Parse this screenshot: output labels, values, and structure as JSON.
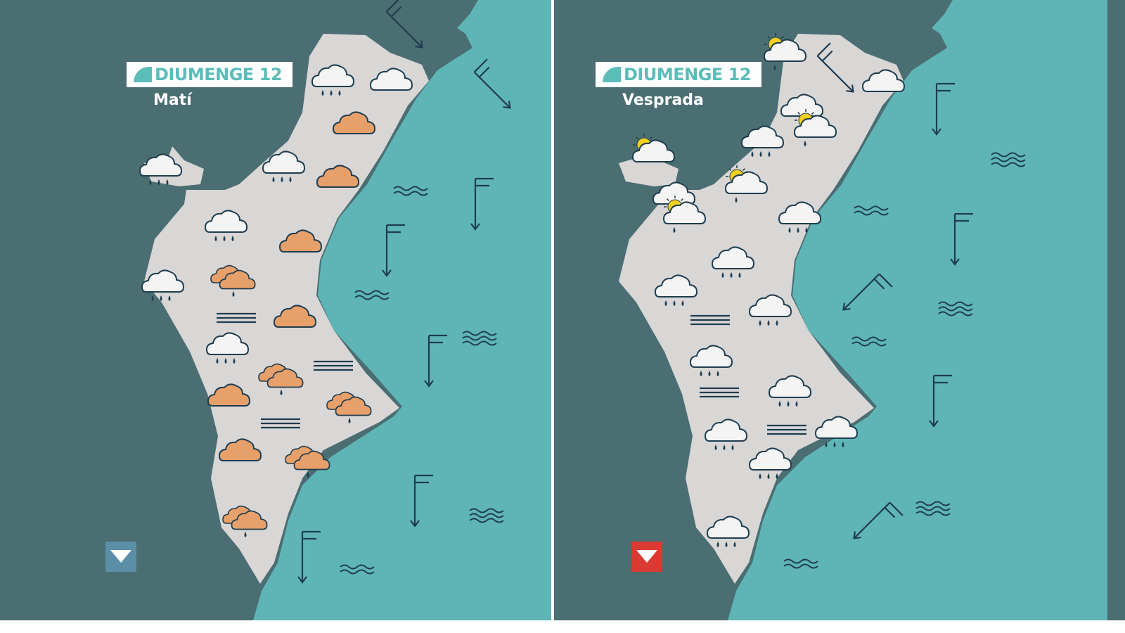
{
  "colors": {
    "land": "#4a6e72",
    "sea": "#5fb5b5",
    "region": "#d9d6d6",
    "outline": "#1f3d4f",
    "cloud": "#f4f4f4",
    "orange_cloud": "#e8a06a",
    "sun": "#f2cf1e",
    "label_text": "#5bbcb8",
    "marker_left": "#5b8fa8",
    "marker_right": "#d93a32"
  },
  "panels": [
    {
      "title": "DIUMENGE 12",
      "period": "Matí",
      "marker": "down-triangle-icon",
      "icons": [
        "rain-cloud",
        "cloud",
        "orange-cloud",
        "rain-cloud",
        "rain-cloud",
        "orange-cloud",
        "rain-cloud",
        "orange-cloud",
        "rain-cloud",
        "orange-double-rain-cloud",
        "fog",
        "orange-cloud",
        "rain-cloud",
        "fog",
        "orange-double-rain-cloud",
        "orange-cloud",
        "orange-double-rain-cloud",
        "fog",
        "orange-cloud",
        "orange-double-rain-cloud",
        "orange-double-rain-cloud"
      ],
      "sea": [
        "waves",
        "waves",
        "waves",
        "waves",
        "waves"
      ],
      "winds": [
        "SE",
        "SE",
        "S",
        "S",
        "S",
        "S",
        "S"
      ]
    },
    {
      "title": "DIUMENGE 12",
      "period": "Vesprada",
      "marker": "down-triangle-icon",
      "icons": [
        "sun-rain-cloud",
        "cloud",
        "cloud",
        "sun-rain-cloud",
        "rain-cloud",
        "sun-cloud",
        "sun-rain-cloud",
        "cloud",
        "sun-rain-cloud",
        "rain-cloud",
        "rain-cloud",
        "rain-cloud",
        "fog",
        "rain-cloud",
        "rain-cloud",
        "fog",
        "rain-cloud",
        "fog",
        "rain-cloud",
        "rain-cloud",
        "rain-cloud",
        "rain-cloud"
      ],
      "sea": [
        "waves",
        "waves",
        "waves",
        "waves",
        "waves",
        "waves"
      ],
      "winds": [
        "SE",
        "S",
        "S",
        "SW",
        "S",
        "SW"
      ]
    }
  ]
}
